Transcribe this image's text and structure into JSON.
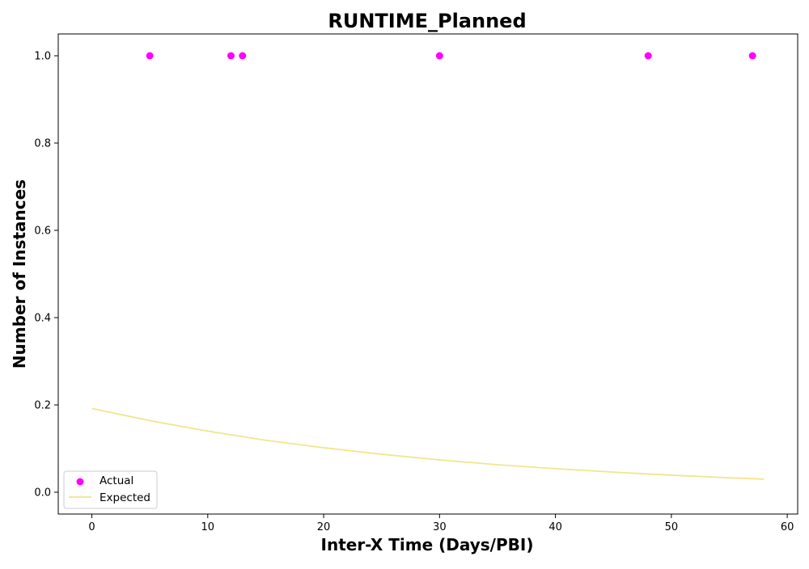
{
  "chart_data": {
    "type": "scatter",
    "title": "RUNTIME_Planned",
    "xlabel": "Inter-X Time (Days/PBI)",
    "ylabel": "Number of Instances",
    "xlim": [
      -2.9,
      60.9
    ],
    "ylim": [
      -0.05,
      1.05
    ],
    "xticks": [
      0,
      10,
      20,
      30,
      40,
      50,
      60
    ],
    "yticks": [
      0.0,
      0.2,
      0.4,
      0.6,
      0.8,
      1.0
    ],
    "xtick_labels": [
      "0",
      "10",
      "20",
      "30",
      "40",
      "50",
      "60"
    ],
    "ytick_labels": [
      "0.0",
      "0.2",
      "0.4",
      "0.6",
      "0.8",
      "1.0"
    ],
    "grid": false,
    "legend_position": "lower-left",
    "series": [
      {
        "name": "Actual",
        "kind": "scatter",
        "color": "#ff00ff",
        "points": [
          {
            "x": 5,
            "y": 1.0
          },
          {
            "x": 12,
            "y": 1.0
          },
          {
            "x": 13,
            "y": 1.0
          },
          {
            "x": 30,
            "y": 1.0
          },
          {
            "x": 48,
            "y": 1.0
          },
          {
            "x": 57,
            "y": 1.0
          }
        ]
      },
      {
        "name": "Expected",
        "kind": "line",
        "color": "#f0e68c",
        "points": [
          {
            "x": 0,
            "y": 0.192
          },
          {
            "x": 5,
            "y": 0.164
          },
          {
            "x": 10,
            "y": 0.14
          },
          {
            "x": 15,
            "y": 0.119
          },
          {
            "x": 20,
            "y": 0.102
          },
          {
            "x": 25,
            "y": 0.087
          },
          {
            "x": 30,
            "y": 0.074
          },
          {
            "x": 35,
            "y": 0.063
          },
          {
            "x": 40,
            "y": 0.054
          },
          {
            "x": 45,
            "y": 0.046
          },
          {
            "x": 50,
            "y": 0.039
          },
          {
            "x": 55,
            "y": 0.033
          },
          {
            "x": 58,
            "y": 0.03
          }
        ]
      }
    ]
  }
}
